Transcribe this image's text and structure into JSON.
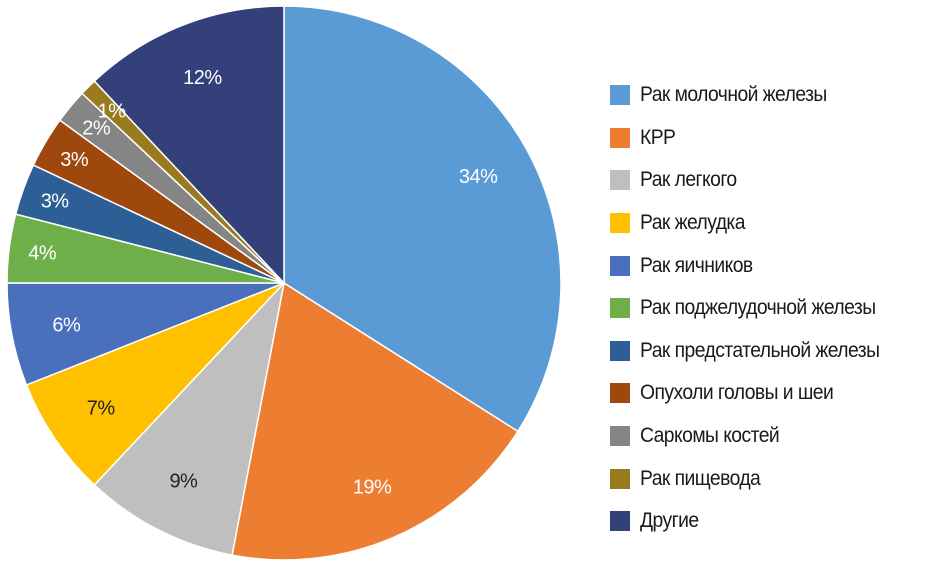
{
  "chart_data": {
    "type": "pie",
    "title": "",
    "legend_position": "right",
    "start_angle": "12 o'clock, clockwise",
    "categories": [
      "Рак молочной железы",
      "КРР",
      "Рак легкого",
      "Рак желудка",
      "Рак яичников",
      "Рак поджелудочной железы",
      "Рак предстательной железы",
      "Опухоли головы и шеи",
      "Саркомы костей",
      "Рак пищевода",
      "Другие"
    ],
    "values": [
      34,
      19,
      9,
      7,
      6,
      4,
      3,
      3,
      2,
      1,
      12
    ],
    "labels": [
      "34%",
      "19%",
      "9%",
      "7%",
      "6%",
      "4%",
      "3%",
      "3%",
      "2%",
      "1%",
      "12%"
    ],
    "colors": [
      "#5B9BD5",
      "#ED7D31",
      "#BFBFBF",
      "#FFC000",
      "#4A6FBD",
      "#6FAF4A",
      "#2E5E96",
      "#9E480E",
      "#858585",
      "#9A7A1E",
      "#33407A"
    ],
    "label_colors": [
      "#ffffff",
      "#ffffff",
      "#222222",
      "#222222",
      "#ffffff",
      "#ffffff",
      "#ffffff",
      "#ffffff",
      "#ffffff",
      "#ffffff",
      "#ffffff"
    ]
  }
}
